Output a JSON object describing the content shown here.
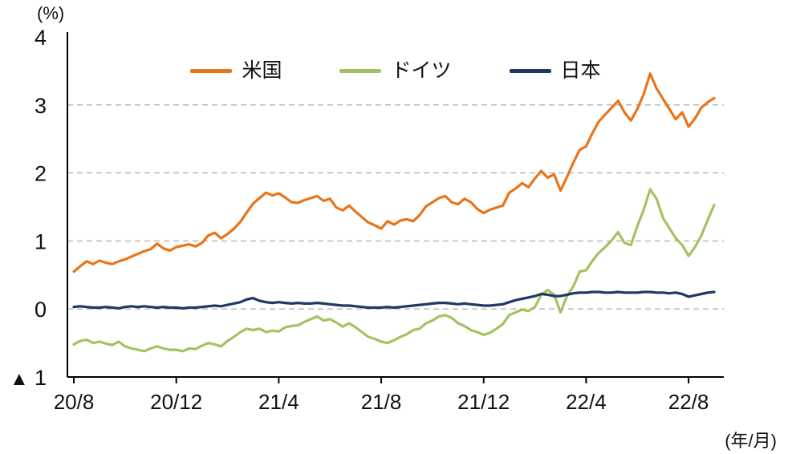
{
  "chart_data": {
    "type": "line",
    "title": "",
    "ylabel": "(%)",
    "xlabel": "(年/月)",
    "negative_prefix": "▲",
    "ylim": [
      -1,
      4
    ],
    "y_ticks": [
      4,
      3,
      2,
      1,
      0,
      -1
    ],
    "grid_values": [
      0,
      1,
      2,
      3
    ],
    "grid_style": "dashed-horizontal",
    "legend_position": "top-center-inside",
    "x_tick_labels": [
      "20/8",
      "20/12",
      "21/4",
      "21/8",
      "21/12",
      "22/4",
      "22/8"
    ],
    "x_tick_indices": [
      0,
      16,
      32,
      48,
      64,
      80,
      96
    ],
    "x_start": "2020/08",
    "x_end": "2022/09",
    "points_per_month": 4,
    "series": [
      {
        "name": "米国",
        "color": "#e8751a",
        "values": [
          0.55,
          0.63,
          0.7,
          0.66,
          0.71,
          0.68,
          0.66,
          0.7,
          0.73,
          0.77,
          0.81,
          0.85,
          0.88,
          0.96,
          0.89,
          0.86,
          0.91,
          0.93,
          0.95,
          0.92,
          0.97,
          1.08,
          1.12,
          1.04,
          1.1,
          1.18,
          1.28,
          1.42,
          1.55,
          1.63,
          1.71,
          1.67,
          1.7,
          1.64,
          1.57,
          1.56,
          1.6,
          1.63,
          1.66,
          1.59,
          1.62,
          1.49,
          1.45,
          1.52,
          1.43,
          1.35,
          1.27,
          1.23,
          1.18,
          1.29,
          1.24,
          1.3,
          1.32,
          1.29,
          1.38,
          1.51,
          1.57,
          1.63,
          1.66,
          1.57,
          1.54,
          1.62,
          1.57,
          1.47,
          1.41,
          1.46,
          1.49,
          1.52,
          1.71,
          1.77,
          1.85,
          1.79,
          1.92,
          2.03,
          1.93,
          1.98,
          1.74,
          1.94,
          2.15,
          2.34,
          2.39,
          2.59,
          2.76,
          2.86,
          2.96,
          3.06,
          2.89,
          2.77,
          2.94,
          3.16,
          3.46,
          3.24,
          3.09,
          2.94,
          2.79,
          2.89,
          2.68,
          2.8,
          2.96,
          3.04,
          3.1
        ]
      },
      {
        "name": "ドイツ",
        "color": "#a5c261",
        "values": [
          -0.52,
          -0.47,
          -0.45,
          -0.5,
          -0.48,
          -0.51,
          -0.53,
          -0.48,
          -0.55,
          -0.58,
          -0.6,
          -0.62,
          -0.58,
          -0.55,
          -0.58,
          -0.6,
          -0.6,
          -0.62,
          -0.58,
          -0.59,
          -0.54,
          -0.5,
          -0.52,
          -0.55,
          -0.47,
          -0.41,
          -0.34,
          -0.29,
          -0.31,
          -0.29,
          -0.34,
          -0.32,
          -0.33,
          -0.27,
          -0.25,
          -0.24,
          -0.19,
          -0.15,
          -0.11,
          -0.17,
          -0.15,
          -0.2,
          -0.26,
          -0.21,
          -0.27,
          -0.34,
          -0.41,
          -0.44,
          -0.48,
          -0.5,
          -0.46,
          -0.41,
          -0.37,
          -0.31,
          -0.29,
          -0.21,
          -0.17,
          -0.11,
          -0.09,
          -0.13,
          -0.21,
          -0.25,
          -0.31,
          -0.34,
          -0.38,
          -0.35,
          -0.29,
          -0.22,
          -0.09,
          -0.05,
          -0.01,
          -0.03,
          0.03,
          0.21,
          0.28,
          0.21,
          -0.05,
          0.19,
          0.33,
          0.55,
          0.57,
          0.71,
          0.83,
          0.91,
          1.01,
          1.13,
          0.97,
          0.94,
          1.22,
          1.46,
          1.76,
          1.62,
          1.34,
          1.19,
          1.04,
          0.94,
          0.78,
          0.91,
          1.08,
          1.31,
          1.53
        ]
      },
      {
        "name": "日本",
        "color": "#203864",
        "values": [
          0.03,
          0.04,
          0.03,
          0.02,
          0.02,
          0.03,
          0.02,
          0.01,
          0.03,
          0.04,
          0.03,
          0.04,
          0.03,
          0.02,
          0.03,
          0.02,
          0.02,
          0.01,
          0.02,
          0.02,
          0.03,
          0.04,
          0.05,
          0.04,
          0.06,
          0.08,
          0.1,
          0.14,
          0.16,
          0.12,
          0.1,
          0.09,
          0.1,
          0.09,
          0.08,
          0.09,
          0.08,
          0.08,
          0.09,
          0.08,
          0.07,
          0.06,
          0.05,
          0.05,
          0.04,
          0.03,
          0.02,
          0.02,
          0.02,
          0.03,
          0.02,
          0.03,
          0.04,
          0.05,
          0.06,
          0.07,
          0.08,
          0.09,
          0.09,
          0.08,
          0.07,
          0.08,
          0.07,
          0.06,
          0.05,
          0.05,
          0.06,
          0.07,
          0.1,
          0.13,
          0.15,
          0.17,
          0.19,
          0.22,
          0.21,
          0.19,
          0.19,
          0.21,
          0.23,
          0.24,
          0.24,
          0.25,
          0.25,
          0.24,
          0.24,
          0.25,
          0.24,
          0.24,
          0.24,
          0.25,
          0.25,
          0.24,
          0.24,
          0.23,
          0.24,
          0.22,
          0.18,
          0.2,
          0.22,
          0.24,
          0.25
        ]
      }
    ]
  }
}
